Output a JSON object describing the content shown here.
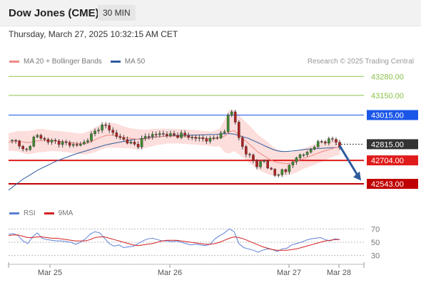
{
  "header": {
    "title": "Dow Jones (CME)",
    "interval": "30 MIN",
    "datetime": "Thursday, March 27, 2025 10:32:15 AM CET"
  },
  "legend": {
    "ma20": {
      "label": "MA 20 + Bollinger Bands",
      "color": "#f08a84"
    },
    "ma50": {
      "label": "MA 50",
      "color": "#2e5c9e"
    }
  },
  "credit": "Research © 2025 Trading Central",
  "rsi_legend": {
    "rsi": {
      "label": "RSI",
      "color": "#5b7fd6"
    },
    "ma9": {
      "label": "9MA",
      "color": "#d42020"
    }
  },
  "chart_data": {
    "type": "candlestick",
    "ylim": [
      42460,
      43340
    ],
    "x_ticks": [
      "Mar 25",
      "Mar 26",
      "Mar 27",
      "Mar 28"
    ],
    "levels": [
      {
        "value": 43280,
        "label": "43280.00",
        "color": "#8bc34a",
        "style": "target"
      },
      {
        "value": 43150,
        "label": "43150.00",
        "color": "#8bc34a",
        "style": "target"
      },
      {
        "value": 43015,
        "label": "43015.00",
        "color": "#1a56e8",
        "style": "resistance"
      },
      {
        "value": 42815,
        "label": "42815.00",
        "color": "#333333",
        "style": "last"
      },
      {
        "value": 42704,
        "label": "42704.00",
        "color": "#e01b1b",
        "style": "support"
      },
      {
        "value": 42543,
        "label": "42543.00",
        "color": "#c00000",
        "style": "support"
      }
    ],
    "forecast": {
      "from": 42805,
      "to": 42565
    },
    "price_points": [
      42840,
      42835,
      42830,
      42775,
      42770,
      42855,
      42875,
      42850,
      42840,
      42835,
      42830,
      42825,
      42820,
      42815,
      42805,
      42815,
      42830,
      42870,
      42900,
      42935,
      42945,
      42920,
      42880,
      42860,
      42845,
      42830,
      42810,
      42810,
      42860,
      42870,
      42880,
      42885,
      42880,
      42885,
      42875,
      42870,
      42885,
      42870,
      42860,
      42860,
      42850,
      42850,
      42845,
      42860,
      42880,
      42900,
      43055,
      43015,
      42850,
      42780,
      42740,
      42700,
      42660,
      42720,
      42650,
      42640,
      42580,
      42640,
      42640,
      42680,
      42730,
      42740,
      42750,
      42780,
      42815,
      42830,
      42835,
      42845,
      42850,
      42790
    ],
    "ma20": [
      42830,
      42833,
      42835,
      42830,
      42825,
      42830,
      42838,
      42840,
      42840,
      42838,
      42836,
      42834,
      42830,
      42826,
      42822,
      42818,
      42820,
      42830,
      42845,
      42860,
      42872,
      42878,
      42875,
      42870,
      42862,
      42858,
      42852,
      42848,
      42850,
      42855,
      42860,
      42865,
      42868,
      42870,
      42870,
      42870,
      42868,
      42866,
      42864,
      42862,
      42858,
      42856,
      42852,
      42854,
      42860,
      42870,
      42900,
      42908,
      42880,
      42850,
      42820,
      42790,
      42760,
      42740,
      42720,
      42700,
      42690,
      42685,
      42682,
      42685,
      42695,
      42710,
      42722,
      42735,
      42748,
      42760,
      42770,
      42780,
      42790,
      42795
    ],
    "ma50": [
      42500,
      42525,
      42550,
      42575,
      42595,
      42615,
      42635,
      42652,
      42668,
      42684,
      42700,
      42712,
      42724,
      42736,
      42748,
      42758,
      42768,
      42778,
      42788,
      42798,
      42808,
      42815,
      42822,
      42828,
      42834,
      42840,
      42846,
      42850,
      42854,
      42858,
      42862,
      42866,
      42868,
      42870,
      42872,
      42874,
      42875,
      42876,
      42877,
      42878,
      42879,
      42880,
      42881,
      42882,
      42884,
      42886,
      42888,
      42884,
      42875,
      42865,
      42855,
      42840,
      42825,
      42810,
      42795,
      42780,
      42770,
      42765,
      42765,
      42768,
      42772,
      42776,
      42780,
      42782,
      42784,
      42786,
      42788,
      42790,
      42792,
      42794
    ],
    "bb_width": [
      60,
      65,
      70,
      75,
      80,
      80,
      80,
      80,
      75,
      70,
      70,
      70,
      70,
      70,
      70,
      70,
      75,
      80,
      85,
      85,
      85,
      85,
      85,
      80,
      75,
      70,
      70,
      70,
      65,
      60,
      60,
      55,
      55,
      50,
      50,
      50,
      50,
      50,
      50,
      50,
      50,
      50,
      50,
      55,
      60,
      110,
      150,
      140,
      135,
      130,
      130,
      125,
      120,
      115,
      110,
      100,
      90,
      85,
      80,
      75,
      75,
      70,
      70,
      70,
      70,
      70,
      65,
      60,
      55,
      55
    ],
    "rsi": {
      "ylim": [
        20,
        80
      ],
      "ticks": [
        70,
        50,
        30
      ],
      "rsi": [
        62,
        63,
        60,
        52,
        48,
        58,
        64,
        56,
        54,
        53,
        52,
        52,
        51,
        50,
        47,
        50,
        55,
        62,
        66,
        64,
        56,
        48,
        44,
        46,
        42,
        43,
        44,
        48,
        52,
        55,
        56,
        54,
        52,
        52,
        51,
        52,
        50,
        48,
        46,
        47,
        46,
        45,
        47,
        55,
        60,
        64,
        70,
        66,
        48,
        42,
        40,
        38,
        35,
        38,
        40,
        39,
        36,
        40,
        41,
        46,
        48,
        50,
        53,
        55,
        56,
        57,
        54,
        52,
        55,
        54
      ],
      "ma9": [
        60,
        61,
        61,
        59,
        57,
        57,
        58,
        58,
        57,
        56,
        56,
        55,
        54,
        53,
        52,
        52,
        52,
        54,
        57,
        58,
        58,
        56,
        54,
        52,
        50,
        48,
        46,
        45,
        46,
        47,
        48,
        50,
        52,
        53,
        53,
        53,
        52,
        51,
        50,
        49,
        48,
        47,
        47,
        48,
        50,
        53,
        56,
        58,
        57,
        55,
        52,
        49,
        46,
        43,
        41,
        39,
        38,
        38,
        38,
        39,
        40,
        42,
        44,
        46,
        48,
        50,
        52,
        53,
        54,
        54
      ]
    }
  }
}
